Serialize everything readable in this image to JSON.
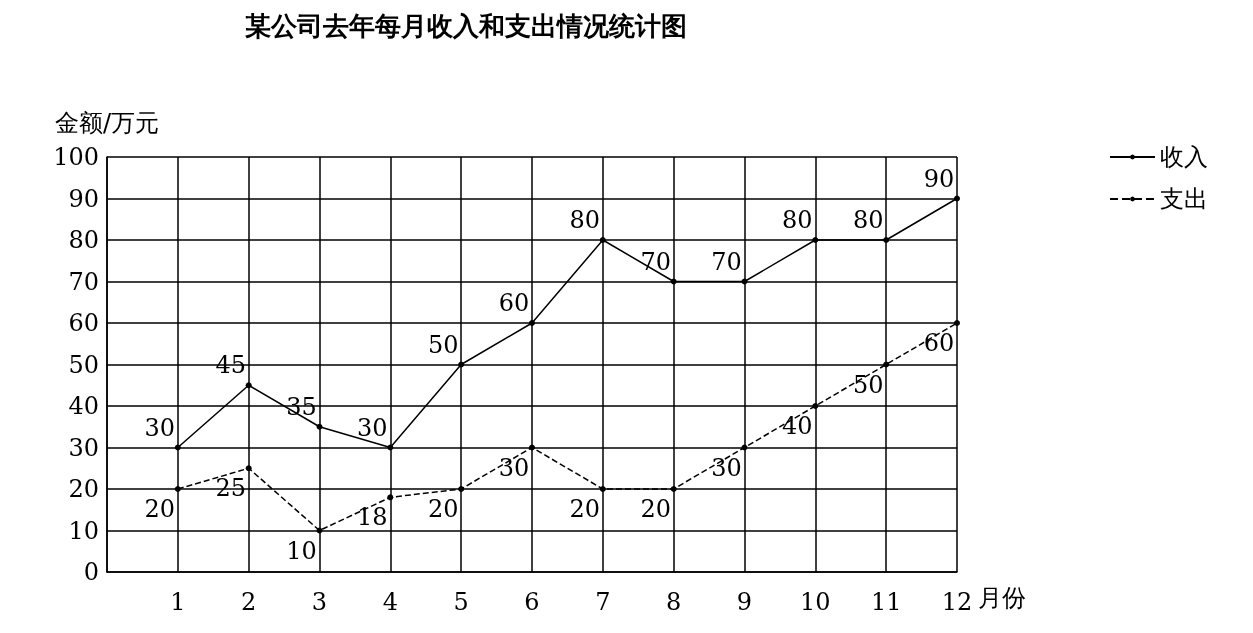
{
  "chart_data": {
    "type": "line",
    "title": "某公司去年每月收入和支出情况统计图",
    "xlabel": "月份",
    "ylabel": "金额/万元",
    "x": [
      1,
      2,
      3,
      4,
      5,
      6,
      7,
      8,
      9,
      10,
      11,
      12
    ],
    "series": [
      {
        "name": "收入",
        "color": "#000000",
        "line_style": "solid",
        "values": [
          30,
          45,
          35,
          30,
          50,
          60,
          80,
          70,
          70,
          80,
          80,
          90
        ]
      },
      {
        "name": "支出",
        "color": "#000000",
        "line_style": "dashed",
        "values": [
          20,
          25,
          10,
          18,
          20,
          30,
          20,
          20,
          30,
          40,
          50,
          60
        ]
      }
    ],
    "xlim": [
      0,
      12
    ],
    "xticks": [
      {
        "value": 0,
        "label": null
      },
      1,
      2,
      3,
      4,
      5,
      6,
      7,
      8,
      9,
      10,
      11,
      12
    ],
    "ylim": [
      0,
      100
    ],
    "yticks": [
      0,
      10,
      20,
      30,
      40,
      50,
      60,
      70,
      80,
      90,
      100
    ],
    "grid": true,
    "legend": "top right",
    "marker": "circle",
    "data_labels": true
  }
}
